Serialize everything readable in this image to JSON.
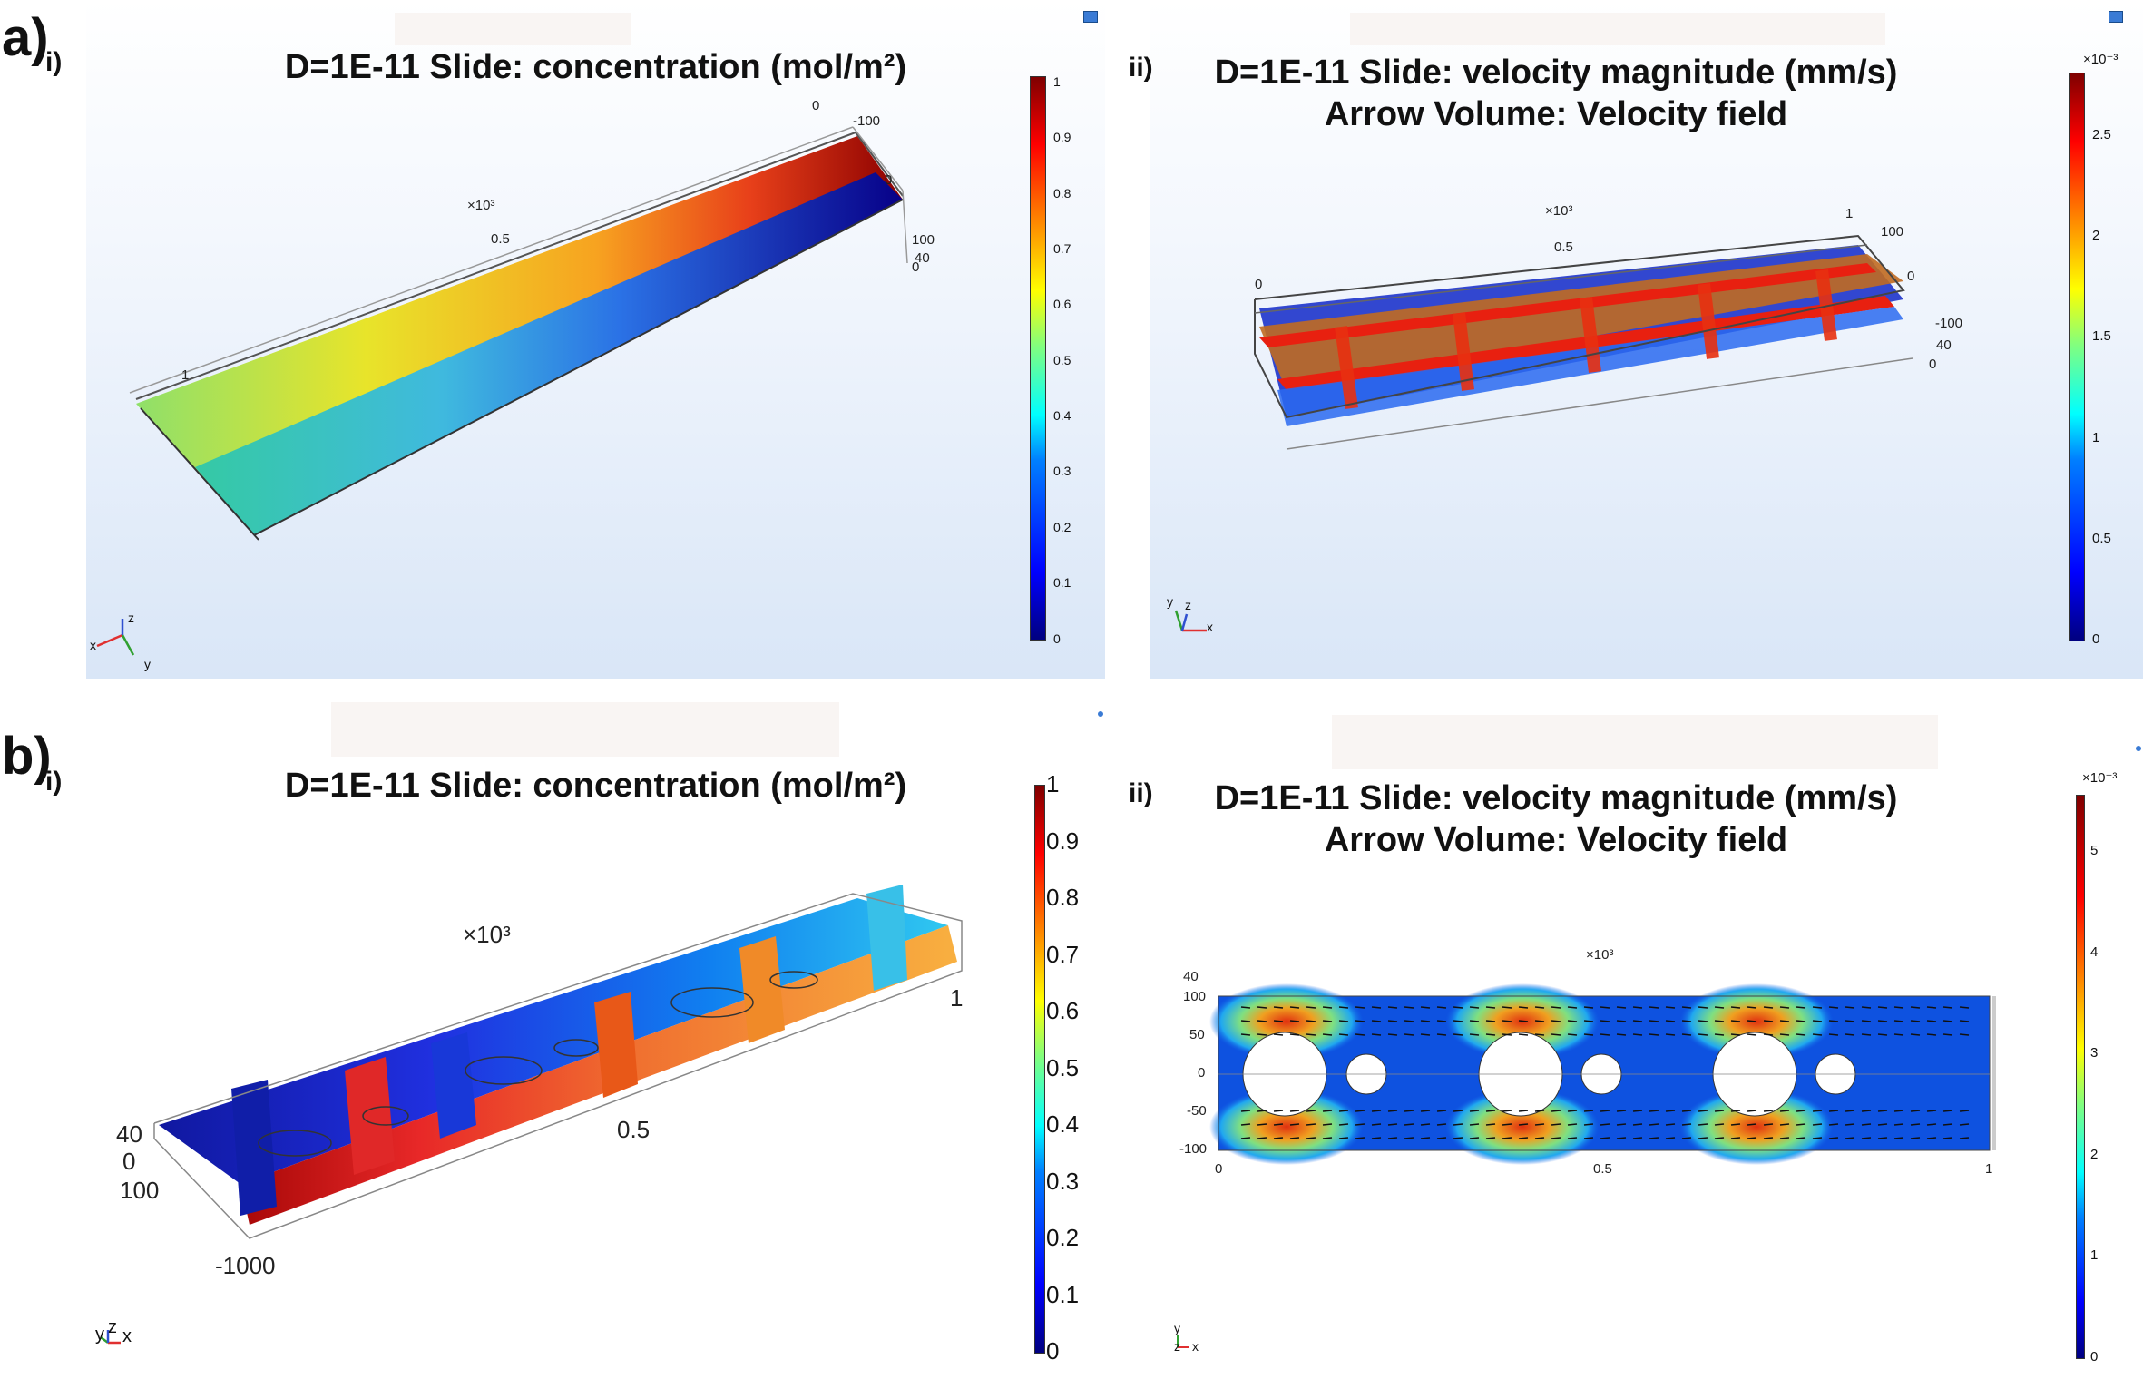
{
  "labels": {
    "a": "a)",
    "b": "b)",
    "a_i": "i)",
    "a_ii": "ii)",
    "b_i": "i)",
    "b_ii": "ii)"
  },
  "panel_a_i": {
    "title": "D=1E-11 Slide: concentration (mol/m²)",
    "colorbar_ticks": [
      "1",
      "0.9",
      "0.8",
      "0.7",
      "0.6",
      "0.5",
      "0.4",
      "0.3",
      "0.2",
      "0.1",
      "0"
    ],
    "axis": {
      "scale": "×10³",
      "t05": "0.5",
      "t1": "1",
      "t0": "0",
      "tm100": "-100",
      "t0b": "0",
      "t100": "100",
      "t40": "40",
      "t0c": "0"
    },
    "triad": {
      "x": "x",
      "y": "y",
      "z": "z"
    }
  },
  "panel_a_ii": {
    "title_line1": "D=1E-11 Slide: velocity magnitude (mm/s)",
    "title_line2": "Arrow Volume: Velocity field",
    "colorbar_exponent": "×10⁻³",
    "colorbar_ticks": [
      "2.5",
      "2",
      "1.5",
      "1",
      "0.5",
      "0"
    ],
    "axis": {
      "scale": "×10³",
      "t05": "0.5",
      "t0": "0",
      "t1": "1",
      "t100": "100",
      "t0b": "0",
      "tm100": "-100",
      "t40": "40",
      "t0c": "0"
    },
    "triad": {
      "x": "x",
      "y": "y",
      "z": "z"
    }
  },
  "panel_b_i": {
    "title": "D=1E-11 Slide: concentration (mol/m²)",
    "colorbar_ticks": [
      "1",
      "0.9",
      "0.8",
      "0.7",
      "0.6",
      "0.5",
      "0.4",
      "0.3",
      "0.2",
      "0.1",
      "0"
    ],
    "axis": {
      "scale": "×10³",
      "t1": "1",
      "t05": "0.5",
      "t40": "40",
      "t0": "0",
      "t100": "100",
      "tm100": "-1000"
    },
    "triad": {
      "x": "x",
      "y": "y",
      "z": "z"
    }
  },
  "panel_b_ii": {
    "title_line1": "D=1E-11 Slide: velocity magnitude (mm/s)",
    "title_line2": "Arrow Volume: Velocity field",
    "colorbar_exponent": "×10⁻³",
    "colorbar_ticks": [
      "5",
      "4",
      "3",
      "2",
      "1",
      "0"
    ],
    "axis": {
      "scale": "×10³",
      "y40": "40",
      "y100": "100",
      "y50": "50",
      "y0": "0",
      "ym50": "-50",
      "ym100": "-100",
      "x0": "0",
      "x05": "0.5",
      "x1": "1"
    },
    "triad": {
      "x": "x",
      "y": "y",
      "z": "z"
    }
  }
}
